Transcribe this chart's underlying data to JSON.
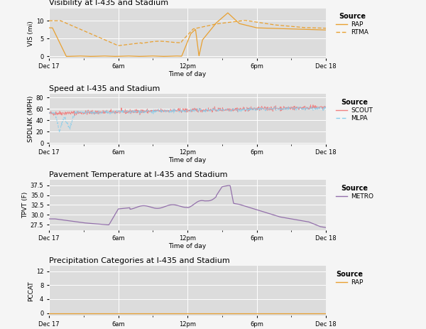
{
  "title1": "Visibility at I-435 and Stadium",
  "title2": "Speed at I-435 and Stadium",
  "title3": "Pavement Temperature at I-435 and Stadium",
  "title4": "Precipitation Categories at I-435 and Stadium",
  "ylabel1": "VIS (mi)",
  "ylabel2": "SPDLNK (MPH)",
  "ylabel3": "TPVT (F)",
  "ylabel4": "PCCAT",
  "xlabel": "Time of day",
  "xtick_labels": [
    "Dec 17",
    "6am",
    "12pm",
    "6pm",
    "Dec 18"
  ],
  "bg_color": "#DCDCDC",
  "fig_color": "#F5F5F5",
  "orange_color": "#E8A030",
  "red_color": "#F08080",
  "blue_color": "#87CEEB",
  "purple_color": "#9370AB",
  "grid_color": "#FFFFFF"
}
